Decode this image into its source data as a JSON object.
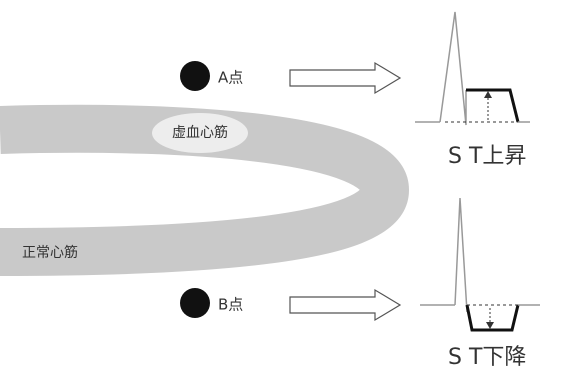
{
  "points": [
    {
      "label": "A点"
    },
    {
      "label": "B点"
    }
  ],
  "regions": [
    {
      "label": "虚血心筋"
    },
    {
      "label": "正常心筋"
    }
  ],
  "results": [
    {
      "label": "S T上昇"
    },
    {
      "label": "S T下降"
    }
  ]
}
